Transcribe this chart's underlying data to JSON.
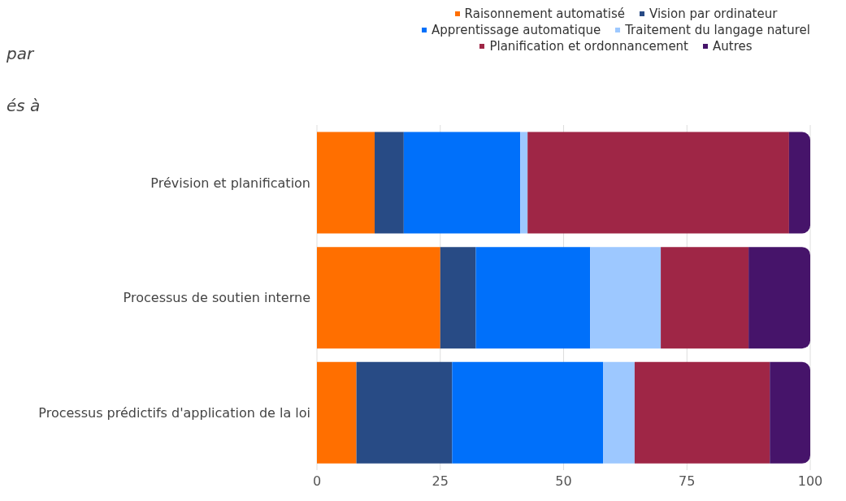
{
  "chart_data": {
    "type": "bar",
    "orientation": "horizontal",
    "stacked": true,
    "categories": [
      "Prévision et planification",
      "Processus de soutien interne",
      "Processus prédictifs d'application de la loi"
    ],
    "series": [
      {
        "name": "Raisonnement automatisé",
        "color": "#ff6f00",
        "values": [
          11.7,
          25,
          8
        ]
      },
      {
        "name": "Vision par ordinateur",
        "color": "#284b85",
        "values": [
          5.9,
          7.2,
          19.4
        ]
      },
      {
        "name": "Apprentissage automatique",
        "color": "#0070fa",
        "values": [
          23.6,
          23.2,
          30.6
        ]
      },
      {
        "name": "Traitement du langage naturel",
        "color": "#9dc8ff",
        "values": [
          1.5,
          14.3,
          6.4
        ]
      },
      {
        "name": "Planification et ordonnancement",
        "color": "#9f2646",
        "values": [
          53,
          17.8,
          27.4
        ]
      },
      {
        "name": "Autres",
        "color": "#46146a",
        "values": [
          4.3,
          12.5,
          8.2
        ]
      }
    ],
    "xlim": [
      0,
      100
    ],
    "xticks": [
      0,
      25,
      50,
      75,
      100
    ],
    "grid": "x",
    "legend": "top",
    "annotations": [
      "par",
      "és à"
    ]
  }
}
